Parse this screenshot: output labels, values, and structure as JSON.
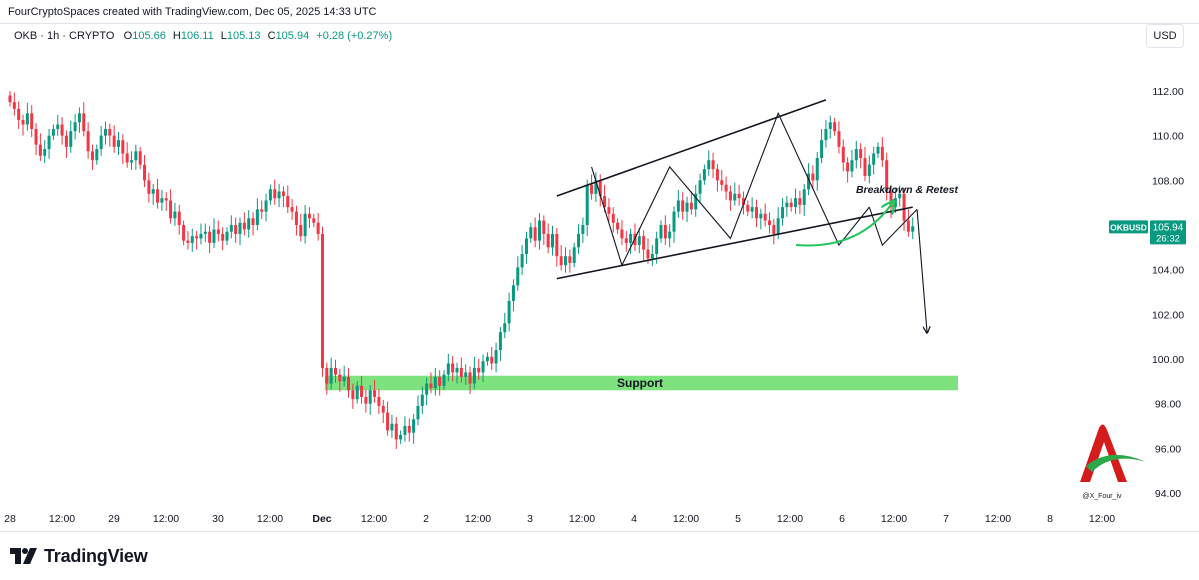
{
  "header": {
    "credit": "FourCryptoSpaces created with TradingView.com, Dec 05, 2025 14:33 UTC"
  },
  "legend": {
    "symbol": "OKB · 1h · CRYPTO",
    "open_label": "O",
    "open": "105.66",
    "high_label": "H",
    "high": "106.11",
    "low_label": "L",
    "low": "105.13",
    "close_label": "C",
    "close": "105.94",
    "change": "+0.28 (+0.27%)"
  },
  "currency": "USD",
  "footer": {
    "brand": "TradingView"
  },
  "watermark": {
    "handle": "@X_Four_iv"
  },
  "colors": {
    "up": "#089981",
    "down": "#f23645",
    "support": "#7ee27e",
    "arrow_green": "#22c55e",
    "pattern": "#131722",
    "price_tag": "#089981"
  },
  "chart_data": {
    "type": "candlestick",
    "title": "",
    "xlabel": "",
    "ylabel": "",
    "ylim": [
      93.0,
      113.8
    ],
    "price_ticks": [
      "112.00",
      "110.00",
      "108.00",
      "106.00",
      "104.00",
      "102.00",
      "100.00",
      "98.00",
      "96.00",
      "94.00"
    ],
    "time_ticks": [
      "28",
      "12:00",
      "29",
      "12:00",
      "30",
      "12:00",
      "Dec",
      "12:00",
      "2",
      "12:00",
      "3",
      "12:00",
      "4",
      "12:00",
      "5",
      "12:00",
      "6",
      "12:00",
      "7",
      "12:00",
      "8",
      "12:00"
    ],
    "last_price": {
      "symbol": "OKBUSD",
      "price": "105.94",
      "countdown": "26:32",
      "value": 105.94
    },
    "support_zone": {
      "label": "Support",
      "low": 98.6,
      "high": 99.25,
      "start_index": 73,
      "end_index": 228
    },
    "annotation": {
      "text": "Breakdown & Retest"
    },
    "channel": {
      "upper": [
        [
          126,
          107.3
        ],
        [
          188,
          111.6
        ]
      ],
      "lower": [
        [
          126,
          103.6
        ],
        [
          208,
          106.8
        ]
      ]
    },
    "zigzag": [
      [
        134,
        108.6
      ],
      [
        141,
        104.2
      ],
      [
        152,
        108.6
      ],
      [
        166,
        105.4
      ],
      [
        177,
        111.0
      ],
      [
        191,
        105.1
      ],
      [
        198,
        106.8
      ]
    ],
    "projection": [
      [
        198,
        106.8
      ],
      [
        206,
        101.2
      ]
    ],
    "closes": [
      111.5,
      111.2,
      110.7,
      110.5,
      111.0,
      110.3,
      109.6,
      109.1,
      109.4,
      110.0,
      110.3,
      110.5,
      110.0,
      109.5,
      110.2,
      110.6,
      111.0,
      110.2,
      109.3,
      108.9,
      109.4,
      110.0,
      110.3,
      110.0,
      109.5,
      109.8,
      109.2,
      108.8,
      108.9,
      109.3,
      108.7,
      108.0,
      107.4,
      107.6,
      107.0,
      107.2,
      107.1,
      106.3,
      106.6,
      106.0,
      105.3,
      105.2,
      105.5,
      105.4,
      105.6,
      105.7,
      105.2,
      105.8,
      105.6,
      105.3,
      105.7,
      106.0,
      105.6,
      106.1,
      105.8,
      106.3,
      106.0,
      106.7,
      106.6,
      107.1,
      107.6,
      107.2,
      107.5,
      107.3,
      106.8,
      106.6,
      106.0,
      105.5,
      106.5,
      106.3,
      106.1,
      105.6,
      99.6,
      98.9,
      99.6,
      99.3,
      99.0,
      99.2,
      98.6,
      98.2,
      98.8,
      98.3,
      98.0,
      98.6,
      98.3,
      97.9,
      97.6,
      96.8,
      97.1,
      96.4,
      96.6,
      97.0,
      96.7,
      97.3,
      97.9,
      98.4,
      98.9,
      98.7,
      99.2,
      98.8,
      99.3,
      99.8,
      99.4,
      99.6,
      99.2,
      99.4,
      98.9,
      99.6,
      99.4,
      99.9,
      100.1,
      99.8,
      100.4,
      101.2,
      101.6,
      102.6,
      103.3,
      104.1,
      104.7,
      105.4,
      105.9,
      105.3,
      106.2,
      105.6,
      105.0,
      105.6,
      104.6,
      104.2,
      104.6,
      104.3,
      105.0,
      105.6,
      106.0,
      107.8,
      107.4,
      108.0,
      107.3,
      106.8,
      106.5,
      106.1,
      105.8,
      105.4,
      105.2,
      105.6,
      105.1,
      105.5,
      104.9,
      104.5,
      104.7,
      105.4,
      106.0,
      105.4,
      105.7,
      106.6,
      107.1,
      106.6,
      107.0,
      106.7,
      107.4,
      108.0,
      108.5,
      108.9,
      108.5,
      108.0,
      107.8,
      107.5,
      107.1,
      107.4,
      107.2,
      106.9,
      106.6,
      106.8,
      106.3,
      106.5,
      106.2,
      106.0,
      105.6,
      106.3,
      106.8,
      107.0,
      106.8,
      107.2,
      106.9,
      107.6,
      108.3,
      108.0,
      109.0,
      109.8,
      110.3,
      110.6,
      110.2,
      109.5,
      108.8,
      108.4,
      108.9,
      109.4,
      109.0,
      108.2,
      108.7,
      109.2,
      109.5,
      108.9,
      107.5,
      106.8,
      107.2,
      107.4,
      106.2,
      105.7,
      105.94
    ]
  }
}
